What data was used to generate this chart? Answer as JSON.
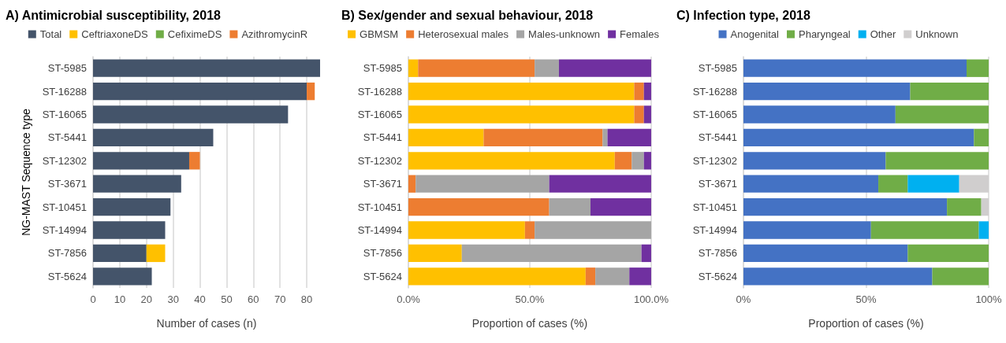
{
  "chart_data": [
    {
      "type": "bar",
      "title": "A) Antimicrobial susceptibility, 2018",
      "xlabel": "Number of cases (n)",
      "ylabel": "NG-MAST Sequence type",
      "orientation": "horizontal",
      "stacked": true,
      "grid": "x",
      "legend": "top",
      "categories": [
        "ST-5985",
        "ST-16288",
        "ST-16065",
        "ST-5441",
        "ST-12302",
        "ST-3671",
        "ST-10451",
        "ST-14994",
        "ST-7856",
        "ST-5624"
      ],
      "xlim": [
        0,
        85
      ],
      "xticks": [
        0,
        10,
        20,
        30,
        40,
        50,
        60,
        70,
        80
      ],
      "series": [
        {
          "name": "Total",
          "color": "#44546a",
          "values": [
            85,
            80,
            73,
            45,
            36,
            33,
            29,
            27,
            20,
            22
          ]
        },
        {
          "name": "CeftriaxoneDS",
          "color": "#ffc000",
          "values": [
            0,
            0,
            0,
            0,
            0,
            0,
            0,
            0,
            7,
            0
          ]
        },
        {
          "name": "CefiximeDS",
          "color": "#70ad47",
          "values": [
            0,
            0,
            0,
            0,
            0,
            0,
            0,
            0,
            0,
            0
          ]
        },
        {
          "name": "AzithromycinR",
          "color": "#ed7d31",
          "values": [
            0,
            3,
            0,
            0,
            4,
            0,
            0,
            0,
            0,
            0
          ]
        }
      ]
    },
    {
      "type": "bar",
      "title": "B) Sex/gender and sexual behaviour, 2018",
      "xlabel": "Proportion of cases (%)",
      "orientation": "horizontal",
      "stacked": true,
      "grid": "x",
      "legend": "top",
      "categories": [
        "ST-5985",
        "ST-16288",
        "ST-16065",
        "ST-5441",
        "ST-12302",
        "ST-3671",
        "ST-10451",
        "ST-14994",
        "ST-7856",
        "ST-5624"
      ],
      "xlim": [
        0,
        100
      ],
      "xticks": [
        {
          "value": 0,
          "label": "0.0%"
        },
        {
          "value": 50,
          "label": "50.0%"
        },
        {
          "value": 100,
          "label": "100.0%"
        }
      ],
      "series": [
        {
          "name": "GBMSM",
          "color": "#ffc000",
          "values": [
            4,
            93,
            93,
            31,
            85,
            0,
            0,
            48,
            22,
            73
          ]
        },
        {
          "name": "Heterosexual males",
          "color": "#ed7d31",
          "values": [
            48,
            4,
            4,
            49,
            7,
            3,
            58,
            4,
            0,
            4
          ]
        },
        {
          "name": "Males-unknown",
          "color": "#a5a5a5",
          "values": [
            10,
            0,
            0,
            2,
            5,
            55,
            17,
            48,
            74,
            14
          ]
        },
        {
          "name": "Females",
          "color": "#7030a0",
          "values": [
            38,
            3,
            3,
            18,
            3,
            42,
            25,
            0,
            4,
            9
          ]
        }
      ]
    },
    {
      "type": "bar",
      "title": "C) Infection type, 2018",
      "xlabel": "Proportion of cases (%)",
      "orientation": "horizontal",
      "stacked": true,
      "grid": "x",
      "legend": "top",
      "categories": [
        "ST-5985",
        "ST-16288",
        "ST-16065",
        "ST-5441",
        "ST-12302",
        "ST-3671",
        "ST-10451",
        "ST-14994",
        "ST-7856",
        "ST-5624"
      ],
      "xlim": [
        0,
        100
      ],
      "xticks": [
        {
          "value": 0,
          "label": "0%"
        },
        {
          "value": 50,
          "label": "50%"
        },
        {
          "value": 100,
          "label": "100%"
        }
      ],
      "series": [
        {
          "name": "Anogenital",
          "color": "#4472c4",
          "values": [
            91,
            68,
            62,
            94,
            58,
            55,
            83,
            52,
            67,
            77
          ]
        },
        {
          "name": "Pharyngeal",
          "color": "#70ad47",
          "values": [
            9,
            32,
            38,
            6,
            42,
            12,
            14,
            44,
            33,
            23
          ]
        },
        {
          "name": "Other",
          "color": "#00b0f0",
          "values": [
            0,
            0,
            0,
            0,
            0,
            21,
            0,
            4,
            0,
            0
          ]
        },
        {
          "name": "Unknown",
          "color": "#d0cece",
          "values": [
            0,
            0,
            0,
            0,
            0,
            12,
            3,
            0,
            0,
            0
          ]
        }
      ]
    }
  ]
}
